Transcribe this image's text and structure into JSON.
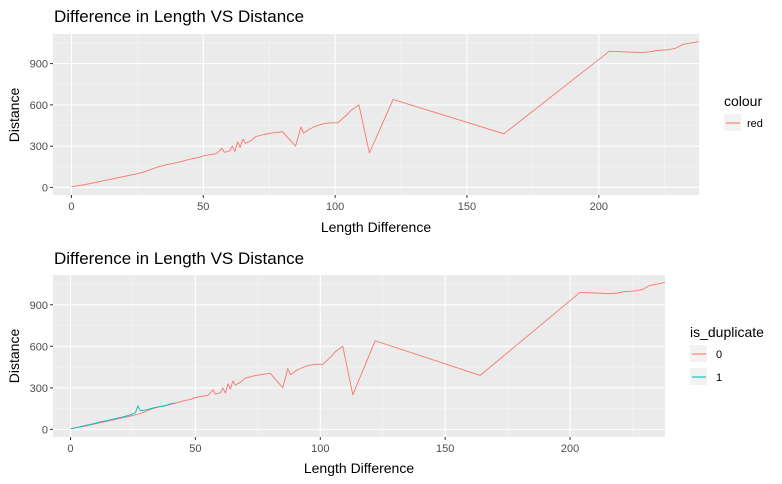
{
  "chart_data": [
    {
      "type": "line",
      "title": "Difference in Length VS Distance",
      "xlabel": "Length Difference",
      "ylabel": "Distance",
      "xlim": [
        -7,
        238
      ],
      "ylim": [
        -55,
        1115
      ],
      "xticks": [
        "0",
        "50",
        "100",
        "150",
        "200"
      ],
      "yticks": [
        "0",
        "300",
        "600",
        "900"
      ],
      "grid": true,
      "legend": {
        "title": "colour",
        "position": "right",
        "entries": [
          {
            "label": "red",
            "color": "#F8766D"
          }
        ]
      },
      "series": [
        {
          "name": "red",
          "color": "#F8766D",
          "points": [
            [
              0,
              5
            ],
            [
              5,
              20
            ],
            [
              10,
              40
            ],
            [
              15,
              60
            ],
            [
              20,
              80
            ],
            [
              25,
              100
            ],
            [
              28,
              115
            ],
            [
              30,
              130
            ],
            [
              33,
              150
            ],
            [
              36,
              165
            ],
            [
              40,
              180
            ],
            [
              43,
              195
            ],
            [
              46,
              210
            ],
            [
              48,
              215
            ],
            [
              50,
              230
            ],
            [
              53,
              240
            ],
            [
              55,
              245
            ],
            [
              57,
              285
            ],
            [
              58,
              255
            ],
            [
              60,
              265
            ],
            [
              61,
              300
            ],
            [
              62,
              262
            ],
            [
              63,
              330
            ],
            [
              64,
              290
            ],
            [
              65,
              350
            ],
            [
              66,
              320
            ],
            [
              68,
              340
            ],
            [
              70,
              370
            ],
            [
              73,
              385
            ],
            [
              76,
              395
            ],
            [
              80,
              405
            ],
            [
              85,
              300
            ],
            [
              87,
              440
            ],
            [
              88,
              395
            ],
            [
              90,
              420
            ],
            [
              92,
              440
            ],
            [
              95,
              460
            ],
            [
              98,
              470
            ],
            [
              101,
              470
            ],
            [
              104,
              520
            ],
            [
              106,
              560
            ],
            [
              109,
              600
            ],
            [
              113,
              250
            ],
            [
              122,
              640
            ],
            [
              164,
              390
            ],
            [
              204,
              990
            ],
            [
              210,
              985
            ],
            [
              216,
              980
            ],
            [
              219,
              985
            ],
            [
              222,
              995
            ],
            [
              226,
              1000
            ],
            [
              229,
              1010
            ],
            [
              232,
              1040
            ],
            [
              238,
              1060
            ]
          ]
        }
      ]
    },
    {
      "type": "line",
      "title": "Difference in Length VS Distance",
      "xlabel": "Length Difference",
      "ylabel": "Distance",
      "xlim": [
        -7,
        238
      ],
      "ylim": [
        -55,
        1115
      ],
      "xticks": [
        "0",
        "50",
        "100",
        "150",
        "200"
      ],
      "yticks": [
        "0",
        "300",
        "600",
        "900"
      ],
      "grid": true,
      "legend": {
        "title": "is_duplicate",
        "position": "right",
        "entries": [
          {
            "label": "0",
            "color": "#F8766D"
          },
          {
            "label": "1",
            "color": "#00BFC4"
          }
        ]
      },
      "series": [
        {
          "name": "0",
          "color": "#F8766D",
          "points": [
            [
              0,
              5
            ],
            [
              5,
              20
            ],
            [
              10,
              40
            ],
            [
              15,
              60
            ],
            [
              20,
              80
            ],
            [
              25,
              100
            ],
            [
              28,
              115
            ],
            [
              30,
              130
            ],
            [
              33,
              150
            ],
            [
              36,
              165
            ],
            [
              40,
              180
            ],
            [
              43,
              195
            ],
            [
              46,
              210
            ],
            [
              48,
              215
            ],
            [
              50,
              230
            ],
            [
              53,
              240
            ],
            [
              55,
              245
            ],
            [
              57,
              285
            ],
            [
              58,
              255
            ],
            [
              60,
              265
            ],
            [
              61,
              300
            ],
            [
              62,
              262
            ],
            [
              63,
              330
            ],
            [
              64,
              290
            ],
            [
              65,
              350
            ],
            [
              66,
              320
            ],
            [
              68,
              340
            ],
            [
              70,
              370
            ],
            [
              73,
              385
            ],
            [
              76,
              395
            ],
            [
              80,
              405
            ],
            [
              85,
              300
            ],
            [
              87,
              440
            ],
            [
              88,
              395
            ],
            [
              90,
              420
            ],
            [
              92,
              440
            ],
            [
              95,
              460
            ],
            [
              98,
              470
            ],
            [
              101,
              470
            ],
            [
              104,
              520
            ],
            [
              106,
              560
            ],
            [
              109,
              600
            ],
            [
              113,
              250
            ],
            [
              122,
              640
            ],
            [
              164,
              390
            ],
            [
              204,
              990
            ],
            [
              210,
              985
            ],
            [
              216,
              980
            ],
            [
              219,
              985
            ],
            [
              222,
              995
            ],
            [
              226,
              1000
            ],
            [
              229,
              1010
            ],
            [
              232,
              1040
            ],
            [
              238,
              1060
            ]
          ]
        },
        {
          "name": "1",
          "color": "#00BFC4",
          "points": [
            [
              0,
              5
            ],
            [
              3,
              15
            ],
            [
              6,
              28
            ],
            [
              9,
              40
            ],
            [
              12,
              55
            ],
            [
              15,
              65
            ],
            [
              18,
              78
            ],
            [
              21,
              90
            ],
            [
              24,
              105
            ],
            [
              26,
              120
            ],
            [
              27,
              170
            ],
            [
              28,
              135
            ],
            [
              30,
              140
            ],
            [
              33,
              155
            ],
            [
              36,
              165
            ],
            [
              38,
              170
            ],
            [
              40,
              185
            ],
            [
              42,
              190
            ]
          ]
        }
      ]
    }
  ]
}
